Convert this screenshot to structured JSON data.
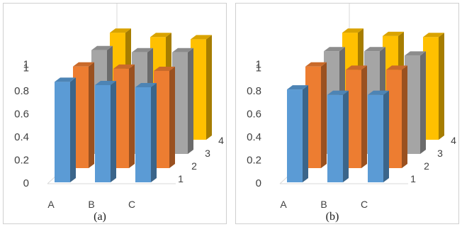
{
  "chart_data": [
    {
      "type": "bar",
      "caption": "(a)",
      "categories": [
        "A",
        "B",
        "C"
      ],
      "series": [
        {
          "name": "1",
          "color": "#5b9bd5",
          "values": [
            0.92,
            0.89,
            0.87
          ]
        },
        {
          "name": "2",
          "color": "#ed7d31",
          "values": [
            0.93,
            0.91,
            0.89
          ]
        },
        {
          "name": "3",
          "color": "#a5a5a5",
          "values": [
            0.95,
            0.93,
            0.93
          ]
        },
        {
          "name": "4",
          "color": "#ffc000",
          "values": [
            0.98,
            0.94,
            0.92
          ]
        }
      ],
      "yticks": [
        "0",
        "0.2",
        "0.4",
        "0.6",
        "0.8",
        "1",
        "1"
      ],
      "ylim": [
        0,
        1.2
      ],
      "grid": false,
      "projection": "3d"
    },
    {
      "type": "bar",
      "caption": "(b)",
      "categories": [
        "A",
        "B",
        "C"
      ],
      "series": [
        {
          "name": "1",
          "color": "#5b9bd5",
          "values": [
            0.85,
            0.8,
            0.8
          ]
        },
        {
          "name": "2",
          "color": "#ed7d31",
          "values": [
            0.93,
            0.9,
            0.9
          ]
        },
        {
          "name": "3",
          "color": "#a5a5a5",
          "values": [
            0.94,
            0.94,
            0.9
          ]
        },
        {
          "name": "4",
          "color": "#ffc000",
          "values": [
            0.98,
            0.95,
            0.94
          ]
        }
      ],
      "yticks": [
        "0",
        "0.2",
        "0.4",
        "0.6",
        "0.8",
        "1",
        "1"
      ],
      "ylim": [
        0,
        1.2
      ],
      "grid": false,
      "projection": "3d"
    }
  ]
}
